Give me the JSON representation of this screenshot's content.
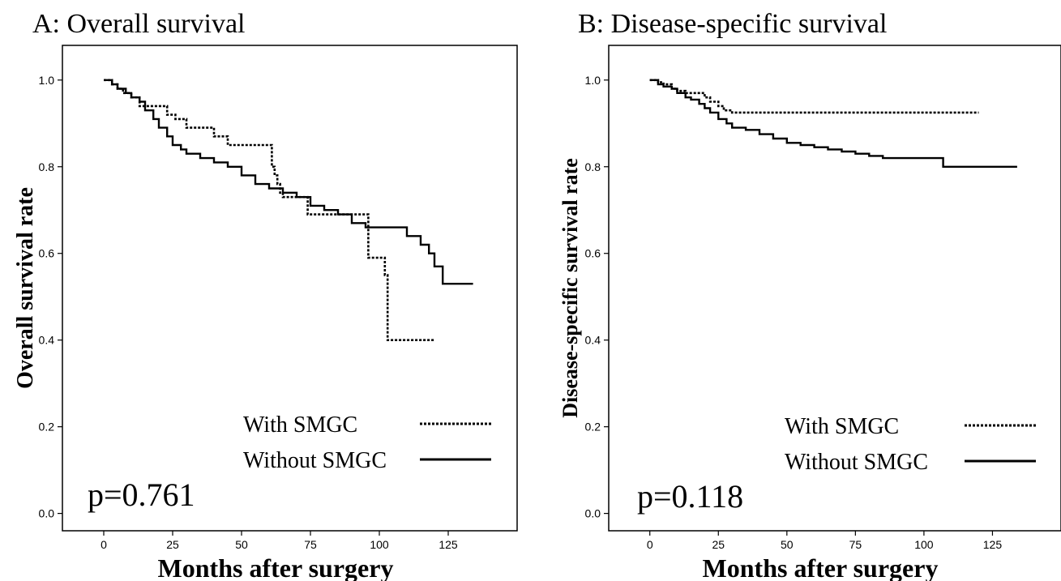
{
  "chart_data": [
    {
      "type": "line",
      "title": "A: Overall survival",
      "xlabel": "Months after surgery",
      "ylabel": "Overall survival rate",
      "xlim": [
        -15,
        150
      ],
      "ylim": [
        -0.04,
        1.08
      ],
      "xticks": [
        0,
        25,
        50,
        75,
        100,
        125
      ],
      "yticks": [
        0.0,
        0.2,
        0.4,
        0.6,
        0.8,
        1.0
      ],
      "legend_position": "bottom-right",
      "annotation": "p=0.761",
      "series": [
        {
          "name": "With SMGC",
          "style": "dotted",
          "x": [
            0,
            3,
            5,
            7,
            10,
            13,
            16,
            20,
            23,
            26,
            30,
            34,
            40,
            45,
            50,
            56,
            60,
            61,
            62,
            63,
            64,
            65,
            70,
            74,
            80,
            90,
            95,
            96,
            100,
            102,
            103,
            110,
            120
          ],
          "y": [
            1.0,
            0.99,
            0.98,
            0.97,
            0.96,
            0.94,
            0.94,
            0.94,
            0.92,
            0.91,
            0.89,
            0.89,
            0.87,
            0.85,
            0.85,
            0.85,
            0.85,
            0.8,
            0.78,
            0.76,
            0.74,
            0.73,
            0.73,
            0.69,
            0.69,
            0.69,
            0.69,
            0.59,
            0.59,
            0.55,
            0.4,
            0.4,
            0.4
          ]
        },
        {
          "name": "Without SMGC",
          "style": "solid",
          "x": [
            0,
            3,
            5,
            8,
            10,
            13,
            15,
            18,
            20,
            23,
            25,
            28,
            30,
            35,
            40,
            45,
            50,
            55,
            60,
            65,
            70,
            75,
            80,
            85,
            90,
            95,
            100,
            105,
            110,
            115,
            118,
            120,
            123,
            128,
            134
          ],
          "y": [
            1.0,
            0.99,
            0.98,
            0.97,
            0.96,
            0.95,
            0.93,
            0.91,
            0.89,
            0.87,
            0.85,
            0.84,
            0.83,
            0.82,
            0.81,
            0.8,
            0.78,
            0.76,
            0.75,
            0.74,
            0.73,
            0.71,
            0.7,
            0.69,
            0.67,
            0.66,
            0.66,
            0.66,
            0.64,
            0.62,
            0.6,
            0.57,
            0.53,
            0.53,
            0.53
          ]
        }
      ]
    },
    {
      "type": "line",
      "title": "B: Disease-specific survival",
      "xlabel": "Months after surgery",
      "ylabel": "Disease-specific survival rate",
      "xlim": [
        -15,
        150
      ],
      "ylim": [
        -0.04,
        1.08
      ],
      "xticks": [
        0,
        25,
        50,
        75,
        100,
        125
      ],
      "yticks": [
        0.0,
        0.2,
        0.4,
        0.6,
        0.8,
        1.0
      ],
      "legend_position": "bottom-right",
      "annotation": "p=0.118",
      "series": [
        {
          "name": "With SMGC",
          "style": "dotted",
          "x": [
            0,
            3,
            5,
            8,
            10,
            13,
            16,
            20,
            22,
            25,
            27,
            30,
            60,
            90,
            120
          ],
          "y": [
            1.0,
            0.995,
            0.99,
            0.98,
            0.975,
            0.97,
            0.97,
            0.96,
            0.95,
            0.94,
            0.93,
            0.925,
            0.925,
            0.925,
            0.925
          ]
        },
        {
          "name": "Without SMGC",
          "style": "solid",
          "x": [
            0,
            3,
            5,
            8,
            10,
            13,
            15,
            18,
            20,
            22,
            25,
            28,
            30,
            35,
            40,
            45,
            50,
            55,
            60,
            65,
            70,
            75,
            80,
            85,
            90,
            100,
            105,
            107,
            115,
            125,
            134
          ],
          "y": [
            1.0,
            0.99,
            0.985,
            0.98,
            0.97,
            0.96,
            0.955,
            0.945,
            0.935,
            0.925,
            0.91,
            0.9,
            0.89,
            0.885,
            0.875,
            0.865,
            0.855,
            0.85,
            0.845,
            0.84,
            0.835,
            0.83,
            0.825,
            0.82,
            0.82,
            0.82,
            0.82,
            0.8,
            0.8,
            0.8,
            0.8
          ]
        }
      ]
    }
  ]
}
